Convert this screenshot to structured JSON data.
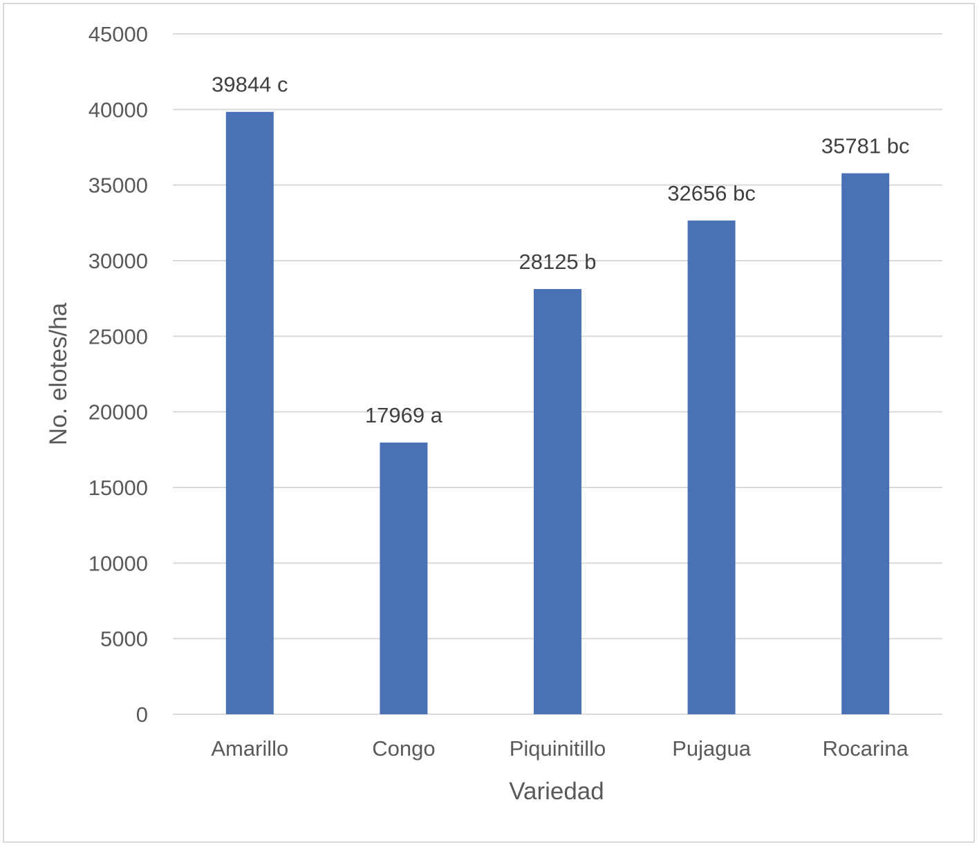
{
  "chart_data": {
    "type": "bar",
    "categories": [
      "Amarillo",
      "Congo",
      "Piquinitillo",
      "Pujagua",
      "Rocarina"
    ],
    "values": [
      39844,
      17969,
      28125,
      32656,
      35781
    ],
    "data_labels": [
      "39844 c",
      "17969 a",
      "28125 b",
      "32656 bc",
      "35781 bc"
    ],
    "title": "",
    "xlabel": "Variedad",
    "ylabel": "No. elotes/ha",
    "ylim": [
      0,
      45000
    ],
    "yticks": [
      "0",
      "5000",
      "10000",
      "15000",
      "20000",
      "25000",
      "30000",
      "35000",
      "40000",
      "45000"
    ],
    "grid": true,
    "legend": "none",
    "colors": {
      "bar": "#4a71b5",
      "grid": "#d9d9d9",
      "text": "#595959",
      "label": "#404040"
    }
  }
}
